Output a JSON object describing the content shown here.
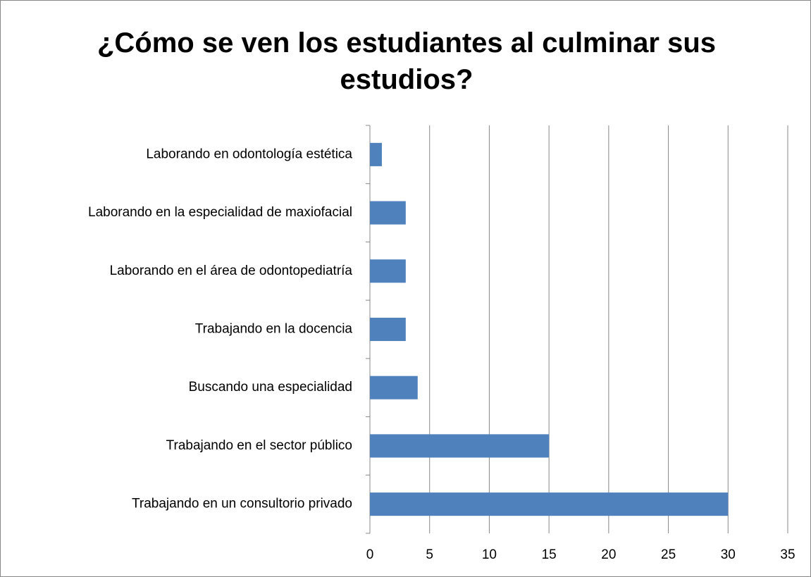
{
  "chart_data": {
    "type": "barh",
    "title": "¿Cómo se ven los estudiantes al culminar sus estudios?",
    "categories": [
      "Trabajando en un consultorio privado",
      "Trabajando en el sector público",
      "Buscando una especialidad",
      "Trabajando en la docencia",
      "Laborando en el área de odontopediatría",
      "Laborando en la especialidad de maxiofacial",
      "Laborando en odontología estética"
    ],
    "values": [
      30,
      15,
      4,
      3,
      3,
      3,
      1
    ],
    "color": "#4f81bd",
    "xlim": [
      0,
      35
    ],
    "xticks": [
      0,
      5,
      10,
      15,
      20,
      25,
      30,
      35
    ],
    "grid": true
  }
}
